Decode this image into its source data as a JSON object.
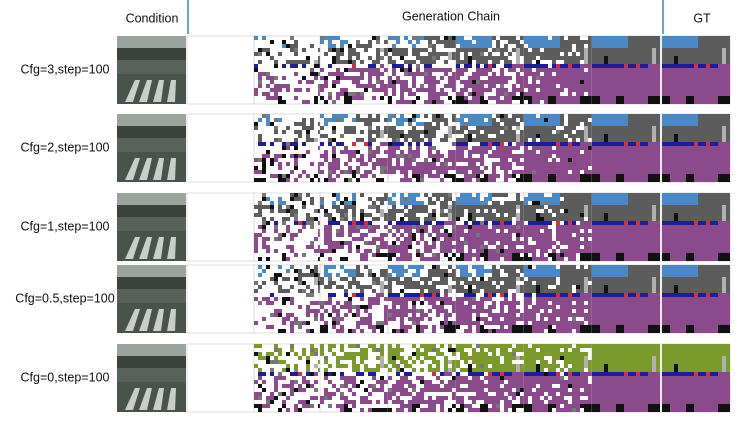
{
  "header": {
    "condition": "Condition",
    "chain": "Generation Chain",
    "gt": "GT"
  },
  "rows": [
    {
      "label": "Cfg=3,step=100"
    },
    {
      "label": "Cfg=2,step=100"
    },
    {
      "label": "Cfg=1,step=100"
    },
    {
      "label": "Cfg=0.5,step=100"
    },
    {
      "label": "Cfg=0,step=100"
    }
  ]
}
